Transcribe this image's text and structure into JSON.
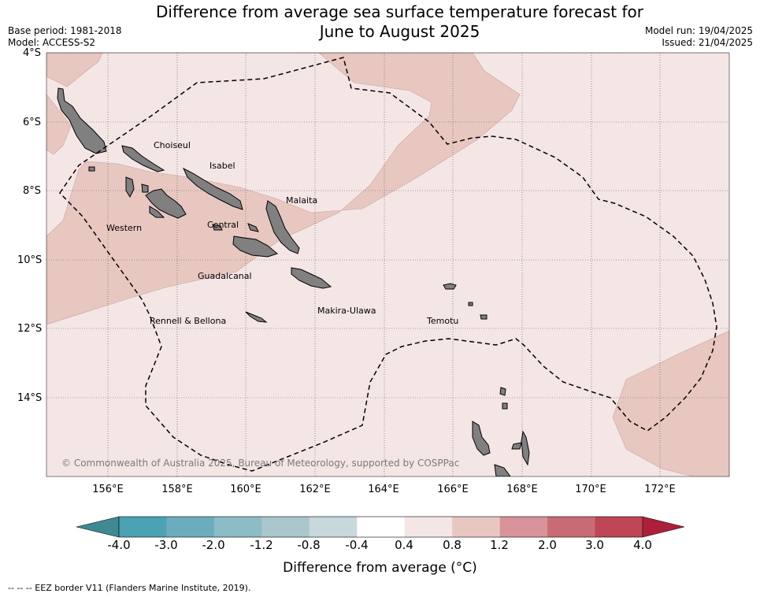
{
  "title": {
    "line1": "Difference from average sea surface temperature forecast for",
    "line2": "June to August 2025"
  },
  "meta": {
    "base_period": "Base period: 1981-2018",
    "model": "Model: ACCESS-S2",
    "model_run": "Model run: 19/04/2025",
    "issued": "Issued: 21/04/2025"
  },
  "map": {
    "lat_ticks": [
      "4°S",
      "6°S",
      "8°S",
      "10°S",
      "12°S",
      "14°S"
    ],
    "lon_ticks": [
      "156°E",
      "158°E",
      "160°E",
      "162°E",
      "164°E",
      "166°E",
      "168°E",
      "170°E",
      "172°E"
    ],
    "provinces": [
      "Choiseul",
      "Isabel",
      "Malaita",
      "Western",
      "Central",
      "Guadalcanal",
      "Rennell & Bellona",
      "Makira-Ulawa",
      "Temotu"
    ],
    "copyright": "© Commonwealth of Australia 2025, Bureau of Meteorology, supported by COSPPac",
    "fill_light": "#f4e6e4",
    "fill_mid": "#e8c7c1",
    "land_color": "#808080"
  },
  "colorbar": {
    "colors": [
      "#4ba2b3",
      "#6cadbd",
      "#8cbcc6",
      "#a9c7cc",
      "#c8d8dc",
      "#ffffff",
      "#f4e6e4",
      "#e8c7c1",
      "#d8939a",
      "#c96b74",
      "#be4655"
    ],
    "under_color": "#3f8a92",
    "over_color": "#ad1f3a",
    "labels": [
      "-4.0",
      "-3.0",
      "-2.0",
      "-1.2",
      "-0.8",
      "-0.4",
      "0.4",
      "0.8",
      "1.2",
      "2.0",
      "3.0",
      "4.0"
    ],
    "title": "Difference from average (°C)"
  },
  "footer": "-- -- -- EEZ border V11 (Flanders Marine Institute, 2019)."
}
